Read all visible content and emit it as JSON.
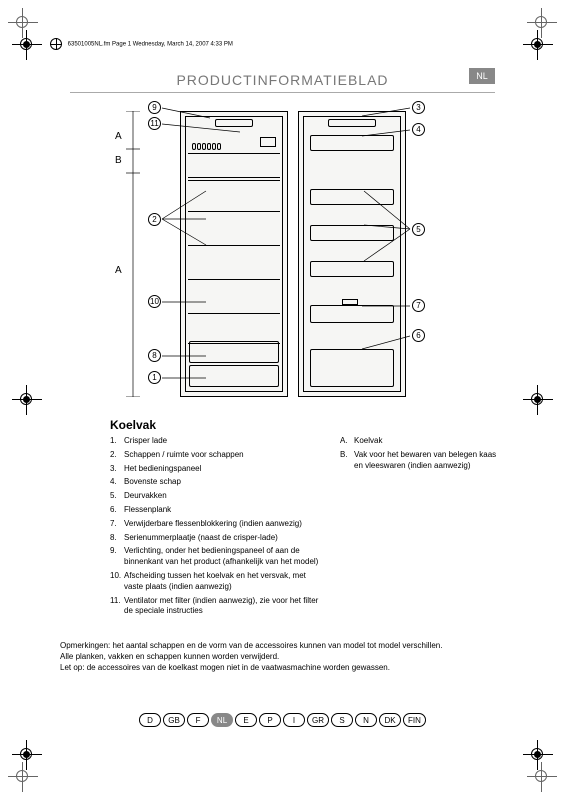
{
  "header_line": "63501005NL.fm  Page 1  Wednesday, March 14, 2007  4:33 PM",
  "title": "PRODUCTINFORMATIEBLAD",
  "lang_badge": "NL",
  "dim_labels": {
    "a_top": "A",
    "b": "B",
    "a_bottom": "A"
  },
  "callouts": {
    "c1": "1",
    "c2": "2",
    "c3": "3",
    "c4": "4",
    "c5": "5",
    "c6": "6",
    "c7": "7",
    "c8": "8",
    "c9": "9",
    "c10": "10",
    "c11": "11"
  },
  "section_title": "Koelvak",
  "numbered_items": [
    "Crisper lade",
    "Schappen / ruimte voor schappen",
    "Het bedieningspaneel",
    "Bovenste schap",
    "Deurvakken",
    "Flessenplank",
    "Verwijderbare flessenblokkering (indien aanwezig)",
    "Serienummerplaatje (naast de crisper-lade)",
    "Verlichting, onder het bedieningspaneel of aan de binnenkant van het product (afhankelijk van het model)",
    "Afscheiding tussen het koelvak en het versvak, met vaste plaats (indien aanwezig)",
    "Ventilator met filter (indien aanwezig), zie voor het filter de speciale instructies"
  ],
  "lettered_items": [
    {
      "letter": "A.",
      "text": "Koelvak"
    },
    {
      "letter": "B.",
      "text": "Vak voor het bewaren van belegen kaas en vleeswaren (indien aanwezig)"
    }
  ],
  "notes": [
    "Opmerkingen: het aantal schappen en de vorm van de accessoires kunnen van model tot model verschillen.",
    "Alle planken, vakken en schappen kunnen worden verwijderd.",
    "Let op: de accessoires van de koelkast mogen niet in de vaatwasmachine worden gewassen."
  ],
  "languages": [
    {
      "code": "D",
      "active": false
    },
    {
      "code": "GB",
      "active": false
    },
    {
      "code": "F",
      "active": false
    },
    {
      "code": "NL",
      "active": true
    },
    {
      "code": "E",
      "active": false
    },
    {
      "code": "P",
      "active": false
    },
    {
      "code": "I",
      "active": false
    },
    {
      "code": "GR",
      "active": false
    },
    {
      "code": "S",
      "active": false
    },
    {
      "code": "N",
      "active": false
    },
    {
      "code": "DK",
      "active": false
    },
    {
      "code": "FIN",
      "active": false
    }
  ],
  "colors": {
    "page_bg": "#ffffff",
    "diagram_bg": "#f6f6f4",
    "title_color": "#777777",
    "badge_bg": "#888888",
    "line": "#000000"
  }
}
